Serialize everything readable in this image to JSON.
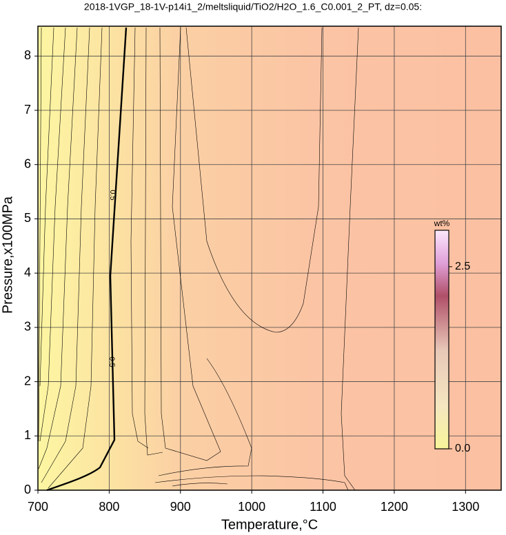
{
  "chart_data": {
    "type": "contour",
    "title": "2018-1VGP_18-1V-p14i1_2/meltsliquid/TiO2/H2O_1.6_C0.001_2_PT, dz=0.05:",
    "x_label": "Temperature,°C",
    "y_label": "Pressure,x100MPa",
    "xlim": [
      700,
      1350
    ],
    "xticks": [
      700,
      800,
      900,
      1000,
      1100,
      1200,
      1300
    ],
    "ylim": [
      0,
      8.55
    ],
    "yticks": [
      0,
      1,
      2,
      3,
      4,
      5,
      6,
      7,
      8
    ],
    "grid": true,
    "colorbar_label": "wt%",
    "clim": [
      0,
      3
    ],
    "cticks": [
      {
        "value": 0,
        "label": "0.0"
      },
      {
        "value": 2.5,
        "label": "2.5"
      }
    ],
    "contour_labels": [
      0.5,
      0.5
    ]
  }
}
